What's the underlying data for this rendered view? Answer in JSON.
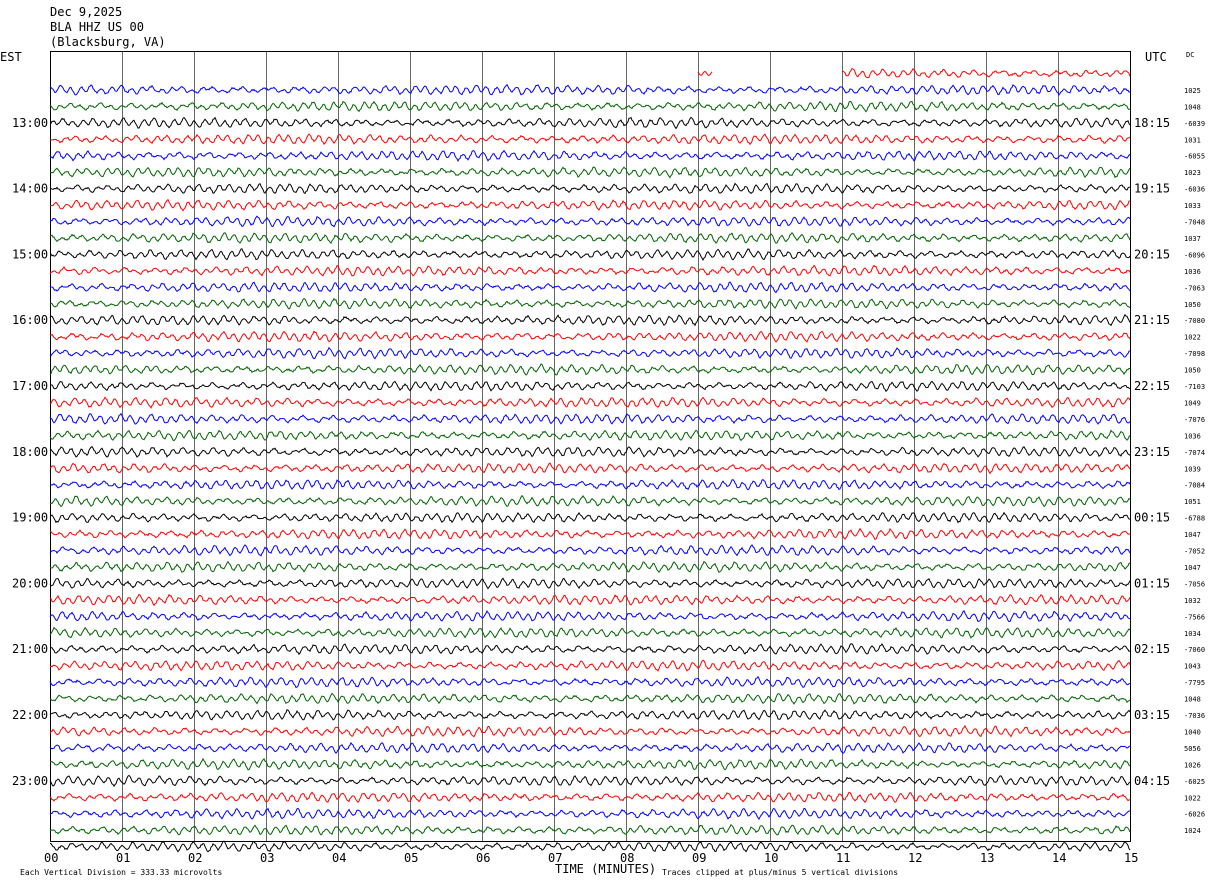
{
  "header": {
    "date": "Dec 9,2025",
    "station": "BLA HHZ US 00",
    "location": "(Blacksburg, VA)"
  },
  "corner_labels": {
    "left": "EST",
    "right": "UTC",
    "dc": "DC"
  },
  "footer": {
    "scale_note": "Each Vertical Division =  333.33 microvolts",
    "clip_note": "Traces clipped at plus/minus 5 vertical divisions"
  },
  "chart_data": {
    "type": "line",
    "xlabel": "TIME (MINUTES)",
    "xlim": [
      0,
      15
    ],
    "x_ticks": [
      "00",
      "01",
      "02",
      "03",
      "04",
      "05",
      "06",
      "07",
      "08",
      "09",
      "10",
      "11",
      "12",
      "13",
      "14",
      "15"
    ],
    "left_hour_labels": [
      "13:00",
      "14:00",
      "15:00",
      "16:00",
      "17:00",
      "18:00",
      "19:00",
      "20:00",
      "21:00",
      "22:00",
      "23:00"
    ],
    "right_hour_labels": [
      "18:15",
      "19:15",
      "20:15",
      "21:15",
      "22:15",
      "23:15",
      "00:15",
      "01:15",
      "02:15",
      "03:15",
      "04:15"
    ],
    "trace_color_cycle": [
      "#000000",
      "#ff0000",
      "#0000ff",
      "#006400"
    ],
    "first_trace_color_index": 1,
    "trace_count": 48,
    "right_dc_values": [
      "",
      "1025",
      "1048",
      "-6039",
      "1031",
      "-6055",
      "1023",
      "-6036",
      "1033",
      "-7048",
      "1037",
      "-6096",
      "1036",
      "-7063",
      "1050",
      "-7080",
      "1022",
      "-7098",
      "1050",
      "-7103",
      "1049",
      "-7076",
      "1036",
      "-7074",
      "1039",
      "-7084",
      "1051",
      "-6788",
      "1047",
      "-7052",
      "1047",
      "-7056",
      "1032",
      "-7566",
      "1034",
      "-7060",
      "1043",
      "-7795",
      "1048",
      "-7036",
      "1040",
      "5056",
      "1026",
      "-6025",
      "1022",
      "-6026",
      "1024"
    ]
  }
}
